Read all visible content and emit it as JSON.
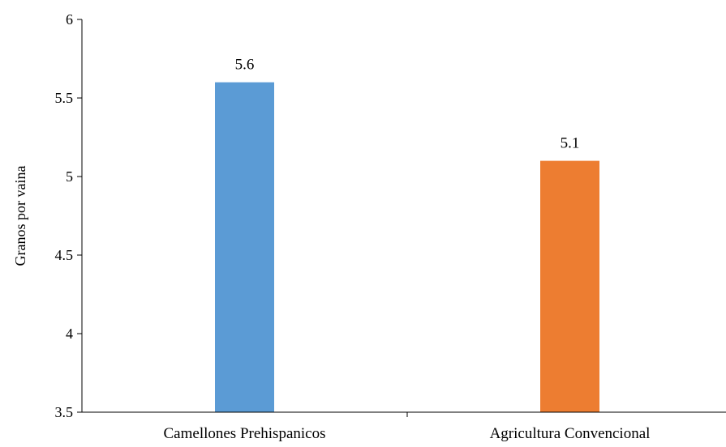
{
  "chart_data": {
    "type": "bar",
    "categories": [
      "Camellones Prehispanicos",
      "Agricultura Convencional"
    ],
    "values": [
      5.6,
      5.1
    ],
    "data_labels": [
      "5.6",
      "5.1"
    ],
    "bar_colors": [
      "#5B9BD5",
      "#ED7D31"
    ],
    "ylabel": "Granos por vaina",
    "xlabel": "",
    "title": "",
    "ylim": [
      3.5,
      6
    ],
    "yticks": [
      3.5,
      4,
      4.5,
      5,
      5.5,
      6
    ],
    "ytick_labels": [
      "3.5",
      "4",
      "4.5",
      "5",
      "5.5",
      "6"
    ],
    "grid": false,
    "legend": "none"
  }
}
